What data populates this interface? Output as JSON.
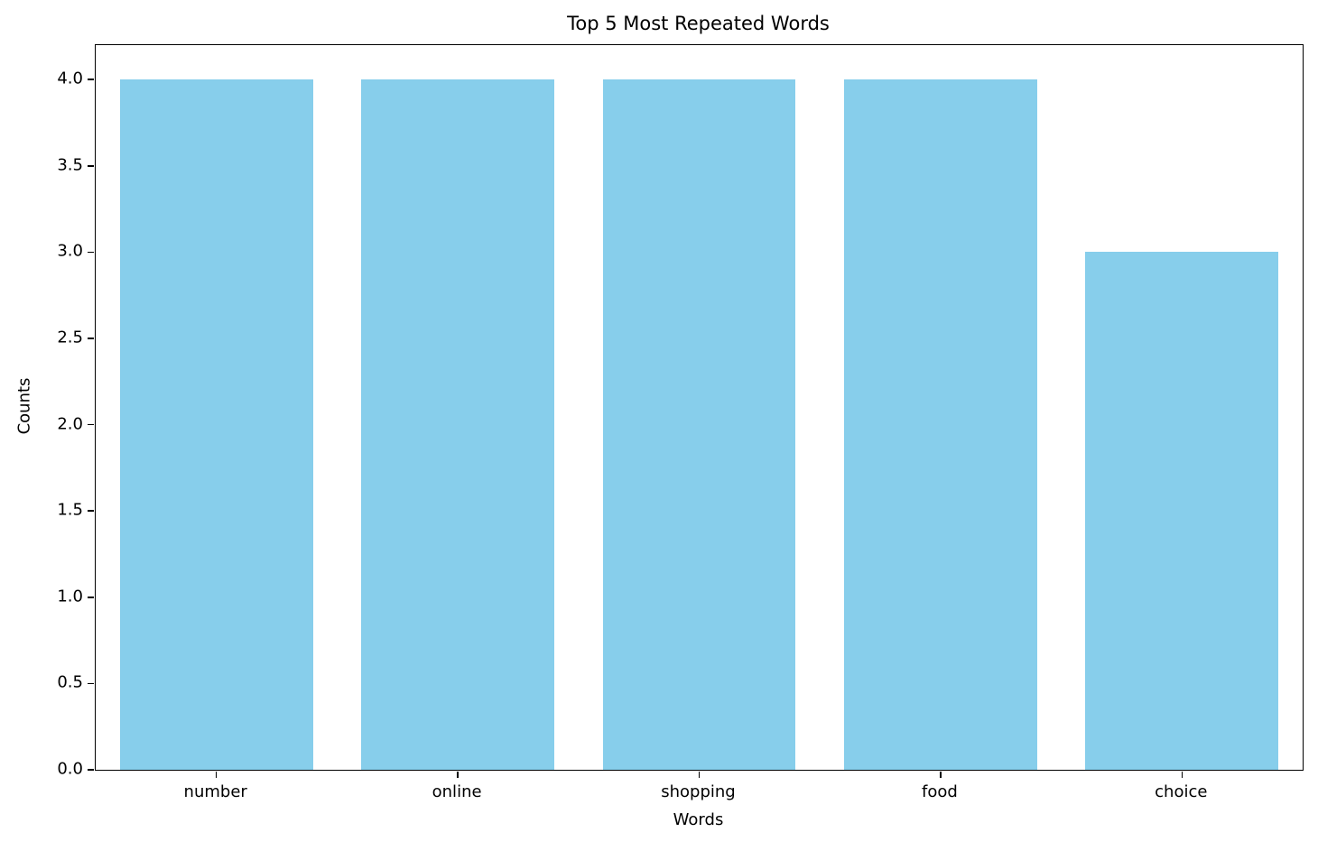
{
  "chart_data": {
    "type": "bar",
    "title": "Top 5 Most Repeated Words",
    "xlabel": "Words",
    "ylabel": "Counts",
    "categories": [
      "number",
      "online",
      "shopping",
      "food",
      "choice"
    ],
    "values": [
      4,
      4,
      4,
      4,
      3
    ],
    "ylim": [
      0,
      4.2
    ],
    "yticks": [
      0.0,
      0.5,
      1.0,
      1.5,
      2.0,
      2.5,
      3.0,
      3.5,
      4.0
    ],
    "ytick_labels": [
      "0.0",
      "0.5",
      "1.0",
      "1.5",
      "2.0",
      "2.5",
      "3.0",
      "3.5",
      "4.0"
    ],
    "bar_color": "#87CEEB",
    "bar_width_fraction": 0.8,
    "grid": false,
    "legend_position": "none",
    "spine_color": "#000000",
    "background_color": "#ffffff"
  }
}
